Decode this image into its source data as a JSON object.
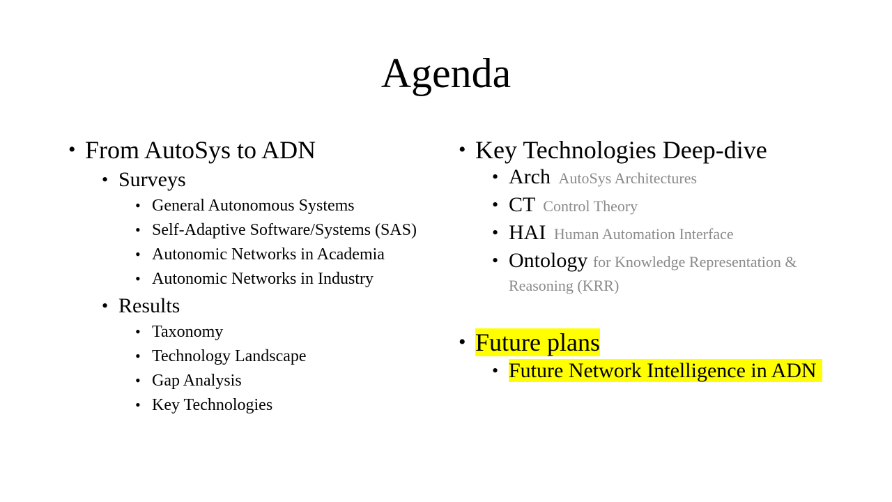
{
  "title": "Agenda",
  "left": {
    "heading": "From AutoSys to ADN",
    "surveys": {
      "label": "Surveys",
      "items": [
        "General Autonomous Systems",
        "Self-Adaptive Software/Systems (SAS)",
        "Autonomic Networks in Academia",
        "Autonomic Networks in Industry"
      ]
    },
    "results": {
      "label": "Results",
      "items": [
        "Taxonomy",
        "Technology Landscape",
        "Gap Analysis",
        "Key Technologies"
      ]
    }
  },
  "right": {
    "heading": "Key Technologies Deep-dive",
    "items": [
      {
        "label": "Arch",
        "note": "AutoSys Architectures"
      },
      {
        "label": "CT",
        "note": "Control Theory"
      },
      {
        "label": "HAI",
        "note": "Human Automation Interface"
      },
      {
        "label": "Ontology",
        "note": "for  Knowledge Representation & Reasoning (KRR)"
      }
    ],
    "future": {
      "heading": "Future plans",
      "item": "Future Network Intelligence in ADN"
    }
  },
  "colors": {
    "highlight": "#ffff00",
    "note_gray": "#8a8a8a"
  }
}
